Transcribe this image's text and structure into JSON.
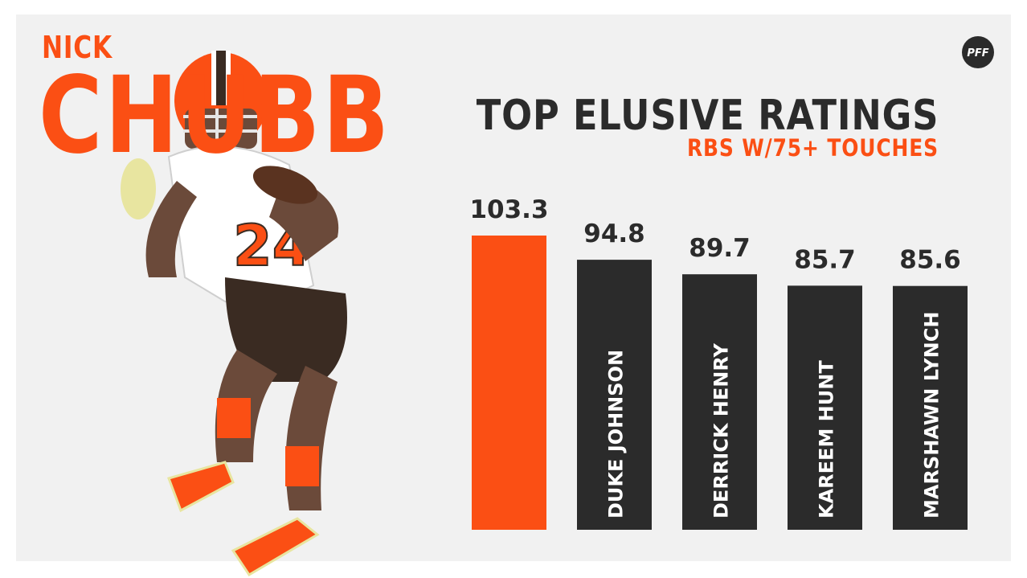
{
  "colors": {
    "accent": "#fb4f14",
    "bar_dark": "#2b2b2b",
    "text_dark": "#2b2b2b",
    "bar_label": "#ffffff",
    "panel_bg": "#f1f1f1",
    "brown": "#3a2b22"
  },
  "player": {
    "first_name": "NICK",
    "last_name": "CHUBB"
  },
  "chart_data": {
    "type": "bar",
    "title": "TOP ELUSIVE RATINGS",
    "subtitle": "RBS W/75+ TOUCHES",
    "categories": [
      "",
      "DUKE JOHNSON",
      "DERRICK HENRY",
      "KAREEM HUNT",
      "MARSHAWN LYNCH"
    ],
    "values": [
      103.3,
      94.8,
      89.7,
      85.7,
      85.6
    ],
    "value_labels": [
      "103.3",
      "94.8",
      "89.7",
      "85.7",
      "85.6"
    ],
    "bar_colors": [
      "#fb4f14",
      "#2b2b2b",
      "#2b2b2b",
      "#2b2b2b",
      "#2b2b2b"
    ],
    "ylim": [
      0,
      103.3
    ],
    "xlabel": "",
    "ylabel": "",
    "grid": false,
    "legend": "none"
  },
  "logo": {
    "icon": "pff-football-logo",
    "text": "PFF"
  }
}
